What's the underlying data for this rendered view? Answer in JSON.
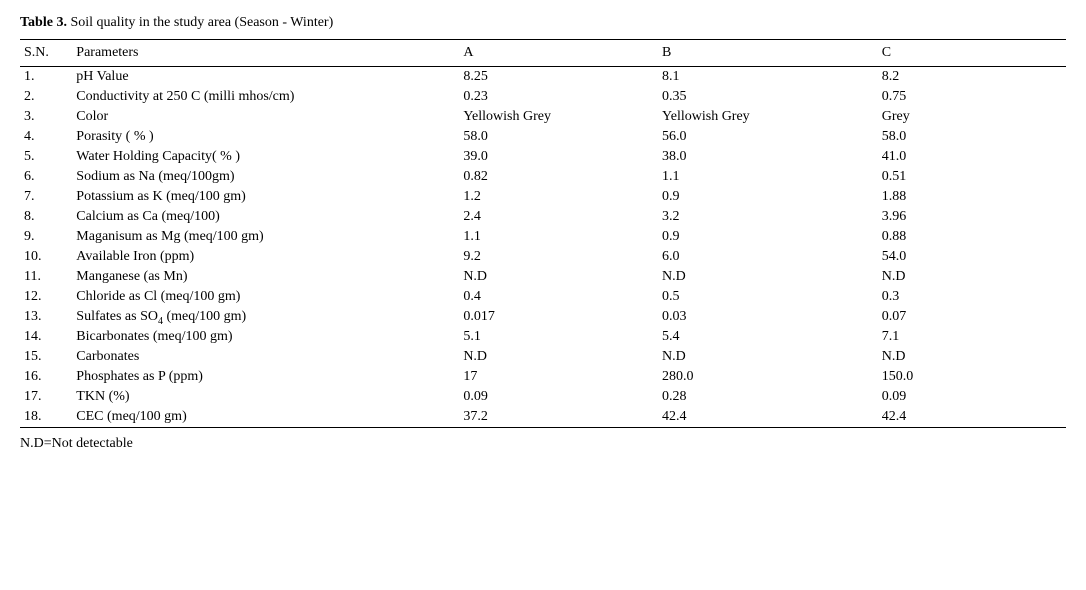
{
  "title_bold": "Table 3.",
  "title_rest": " Soil quality in the study area (Season - Winter)",
  "columns": [
    "S.N.",
    "Parameters",
    "A",
    "B",
    "C"
  ],
  "rows": [
    {
      "sn": "1.",
      "param": "pH Value",
      "a": "8.25",
      "b": "8.1",
      "c": "8.2"
    },
    {
      "sn": "2.",
      "param": "Conductivity at 250 C (milli mhos/cm)",
      "a": "0.23",
      "b": "0.35",
      "c": "0.75"
    },
    {
      "sn": "3.",
      "param": "Color",
      "a": "Yellowish Grey",
      "b": "Yellowish Grey",
      "c": "Grey"
    },
    {
      "sn": "4.",
      "param": "Porasity ( % )",
      "a": "58.0",
      "b": "56.0",
      "c": "58.0"
    },
    {
      "sn": "5.",
      "param": "Water Holding Capacity( % )",
      "a": "39.0",
      "b": "38.0",
      "c": "41.0"
    },
    {
      "sn": "6.",
      "param": "Sodium as Na (meq/100gm)",
      "a": "0.82",
      "b": "1.1",
      "c": "0.51"
    },
    {
      "sn": "7.",
      "param": "Potassium as K (meq/100 gm)",
      "a": "1.2",
      "b": "0.9",
      "c": "1.88"
    },
    {
      "sn": "8.",
      "param": "Calcium as Ca (meq/100)",
      "a": "2.4",
      "b": "3.2",
      "c": "3.96"
    },
    {
      "sn": "9.",
      "param": "Maganisum as Mg (meq/100 gm)",
      "a": "1.1",
      "b": "0.9",
      "c": "0.88"
    },
    {
      "sn": "10.",
      "param": "Available  Iron (ppm)",
      "a": "9.2",
      "b": "6.0",
      "c": "54.0"
    },
    {
      "sn": "11.",
      "param": "Manganese (as Mn)",
      "a": "N.D",
      "b": "N.D",
      "c": "N.D"
    },
    {
      "sn": "12.",
      "param": "Chloride as Cl (meq/100 gm)",
      "a": "0.4",
      "b": "0.5",
      "c": "0.3"
    },
    {
      "sn": "13.",
      "param_html": "Sulfates as SO<sub>4</sub> (meq/100 gm)",
      "a": "0.017",
      "b": "0.03",
      "c": "0.07"
    },
    {
      "sn": "14.",
      "param": "Bicarbonates (meq/100 gm)",
      "a": "5.1",
      "b": "5.4",
      "c": "7.1"
    },
    {
      "sn": "15.",
      "param": "Carbonates",
      "a": "N.D",
      "b": "N.D",
      "c": "N.D"
    },
    {
      "sn": "16.",
      "param": "Phosphates as P (ppm)",
      "a": "17",
      "b": "280.0",
      "c": "150.0"
    },
    {
      "sn": "17.",
      "param": "TKN (%)",
      "a": "0.09",
      "b": "0.28",
      "c": "0.09"
    },
    {
      "sn": "18.",
      "param": "CEC (meq/100 gm)",
      "a": "37.2",
      "b": "42.4",
      "c": "42.4"
    }
  ],
  "footnote": "N.D=Not detectable",
  "style": {
    "font_family": "Palatino Linotype, Book Antiqua, Palatino, Georgia, serif",
    "font_size_pt": 11,
    "text_color": "#000000",
    "background_color": "#ffffff",
    "rule_color": "#000000",
    "col_widths_pct": {
      "sn": 5,
      "param": 37,
      "a": 19,
      "b": 21,
      "c": 18
    }
  }
}
